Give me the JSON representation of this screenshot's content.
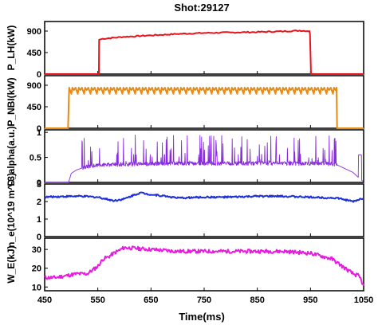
{
  "chart_data": {
    "type": "line",
    "title": "Shot:29127",
    "xlabel": "Time(ms)",
    "xlim": [
      450,
      1050
    ],
    "x_ticks": [
      "450",
      "550",
      "650",
      "750",
      "850",
      "950",
      "1050"
    ],
    "panels": [
      {
        "ylabel": "P_LH(kW)",
        "ylim": [
          0,
          1100
        ],
        "y_ticks": [
          "0",
          "450",
          "900"
        ],
        "color": "#e8141c",
        "series": {
          "x": [
            450,
            552,
            552.5,
            560,
            600,
            650,
            700,
            750,
            800,
            850,
            900,
            930,
            948,
            949,
            951,
            1050
          ],
          "y": [
            0,
            0,
            720,
            740,
            780,
            810,
            840,
            860,
            870,
            880,
            895,
            910,
            900,
            840,
            0,
            0
          ]
        }
      },
      {
        "ylabel": "P_NBI(kW)",
        "ylim": [
          0,
          1100
        ],
        "y_ticks": [
          "0",
          "450",
          "900"
        ],
        "color": "#e88a14",
        "series": {
          "x_start": 496,
          "x_end": 1000,
          "base_level": 850,
          "modulation_depth": 130,
          "modulation_period": 12
        }
      },
      {
        "ylabel": "D_alpha(a.u.)",
        "ylim": [
          0,
          1.05
        ],
        "y_ticks": [
          "0",
          "0.5",
          "1"
        ],
        "color": "#8a2be2",
        "series": {
          "baseline": {
            "x": [
              450,
              495,
              500,
              510,
              530,
              560,
              600,
              640,
              700,
              800,
              900,
              990,
              1000,
              1030,
              1045,
              1050
            ],
            "y": [
              0,
              0,
              0.18,
              0.25,
              0.32,
              0.35,
              0.36,
              0.37,
              0.38,
              0.38,
              0.38,
              0.37,
              0.35,
              0.2,
              0.05,
              0.02
            ]
          },
          "spike_range": [
            520,
            1000
          ],
          "spike_max": 0.95
        }
      },
      {
        "ylabel": "n_e(10^19 m^-3)",
        "ylim": [
          0,
          3
        ],
        "y_ticks": [
          "0",
          "1",
          "2",
          "3"
        ],
        "color": "#1e2fd8",
        "series": {
          "x": [
            450,
            470,
            500,
            520,
            550,
            580,
            600,
            620,
            630,
            650,
            680,
            700,
            750,
            800,
            850,
            900,
            950,
            1000,
            1030,
            1040,
            1050
          ],
          "y": [
            2.25,
            2.28,
            2.3,
            2.3,
            2.25,
            2.05,
            2.15,
            2.4,
            2.5,
            2.4,
            2.3,
            2.2,
            2.25,
            2.25,
            2.3,
            2.3,
            2.25,
            2.2,
            2.0,
            2.1,
            2.2
          ]
        }
      },
      {
        "ylabel": "W_E(kJ)",
        "ylim": [
          8,
          36
        ],
        "y_ticks": [
          "10",
          "20",
          "30"
        ],
        "color": "#e81ce0",
        "series": {
          "x": [
            450,
            470,
            490,
            510,
            530,
            550,
            560,
            570,
            580,
            600,
            650,
            700,
            750,
            800,
            850,
            900,
            950,
            990,
            1000,
            1010,
            1020,
            1030,
            1040,
            1045,
            1050
          ],
          "y": [
            15,
            15,
            16,
            17,
            17,
            21,
            25,
            26,
            28,
            31,
            30,
            29,
            29,
            29,
            29,
            29,
            28,
            25,
            23,
            21,
            19,
            17,
            16,
            14,
            10
          ]
        }
      }
    ]
  }
}
